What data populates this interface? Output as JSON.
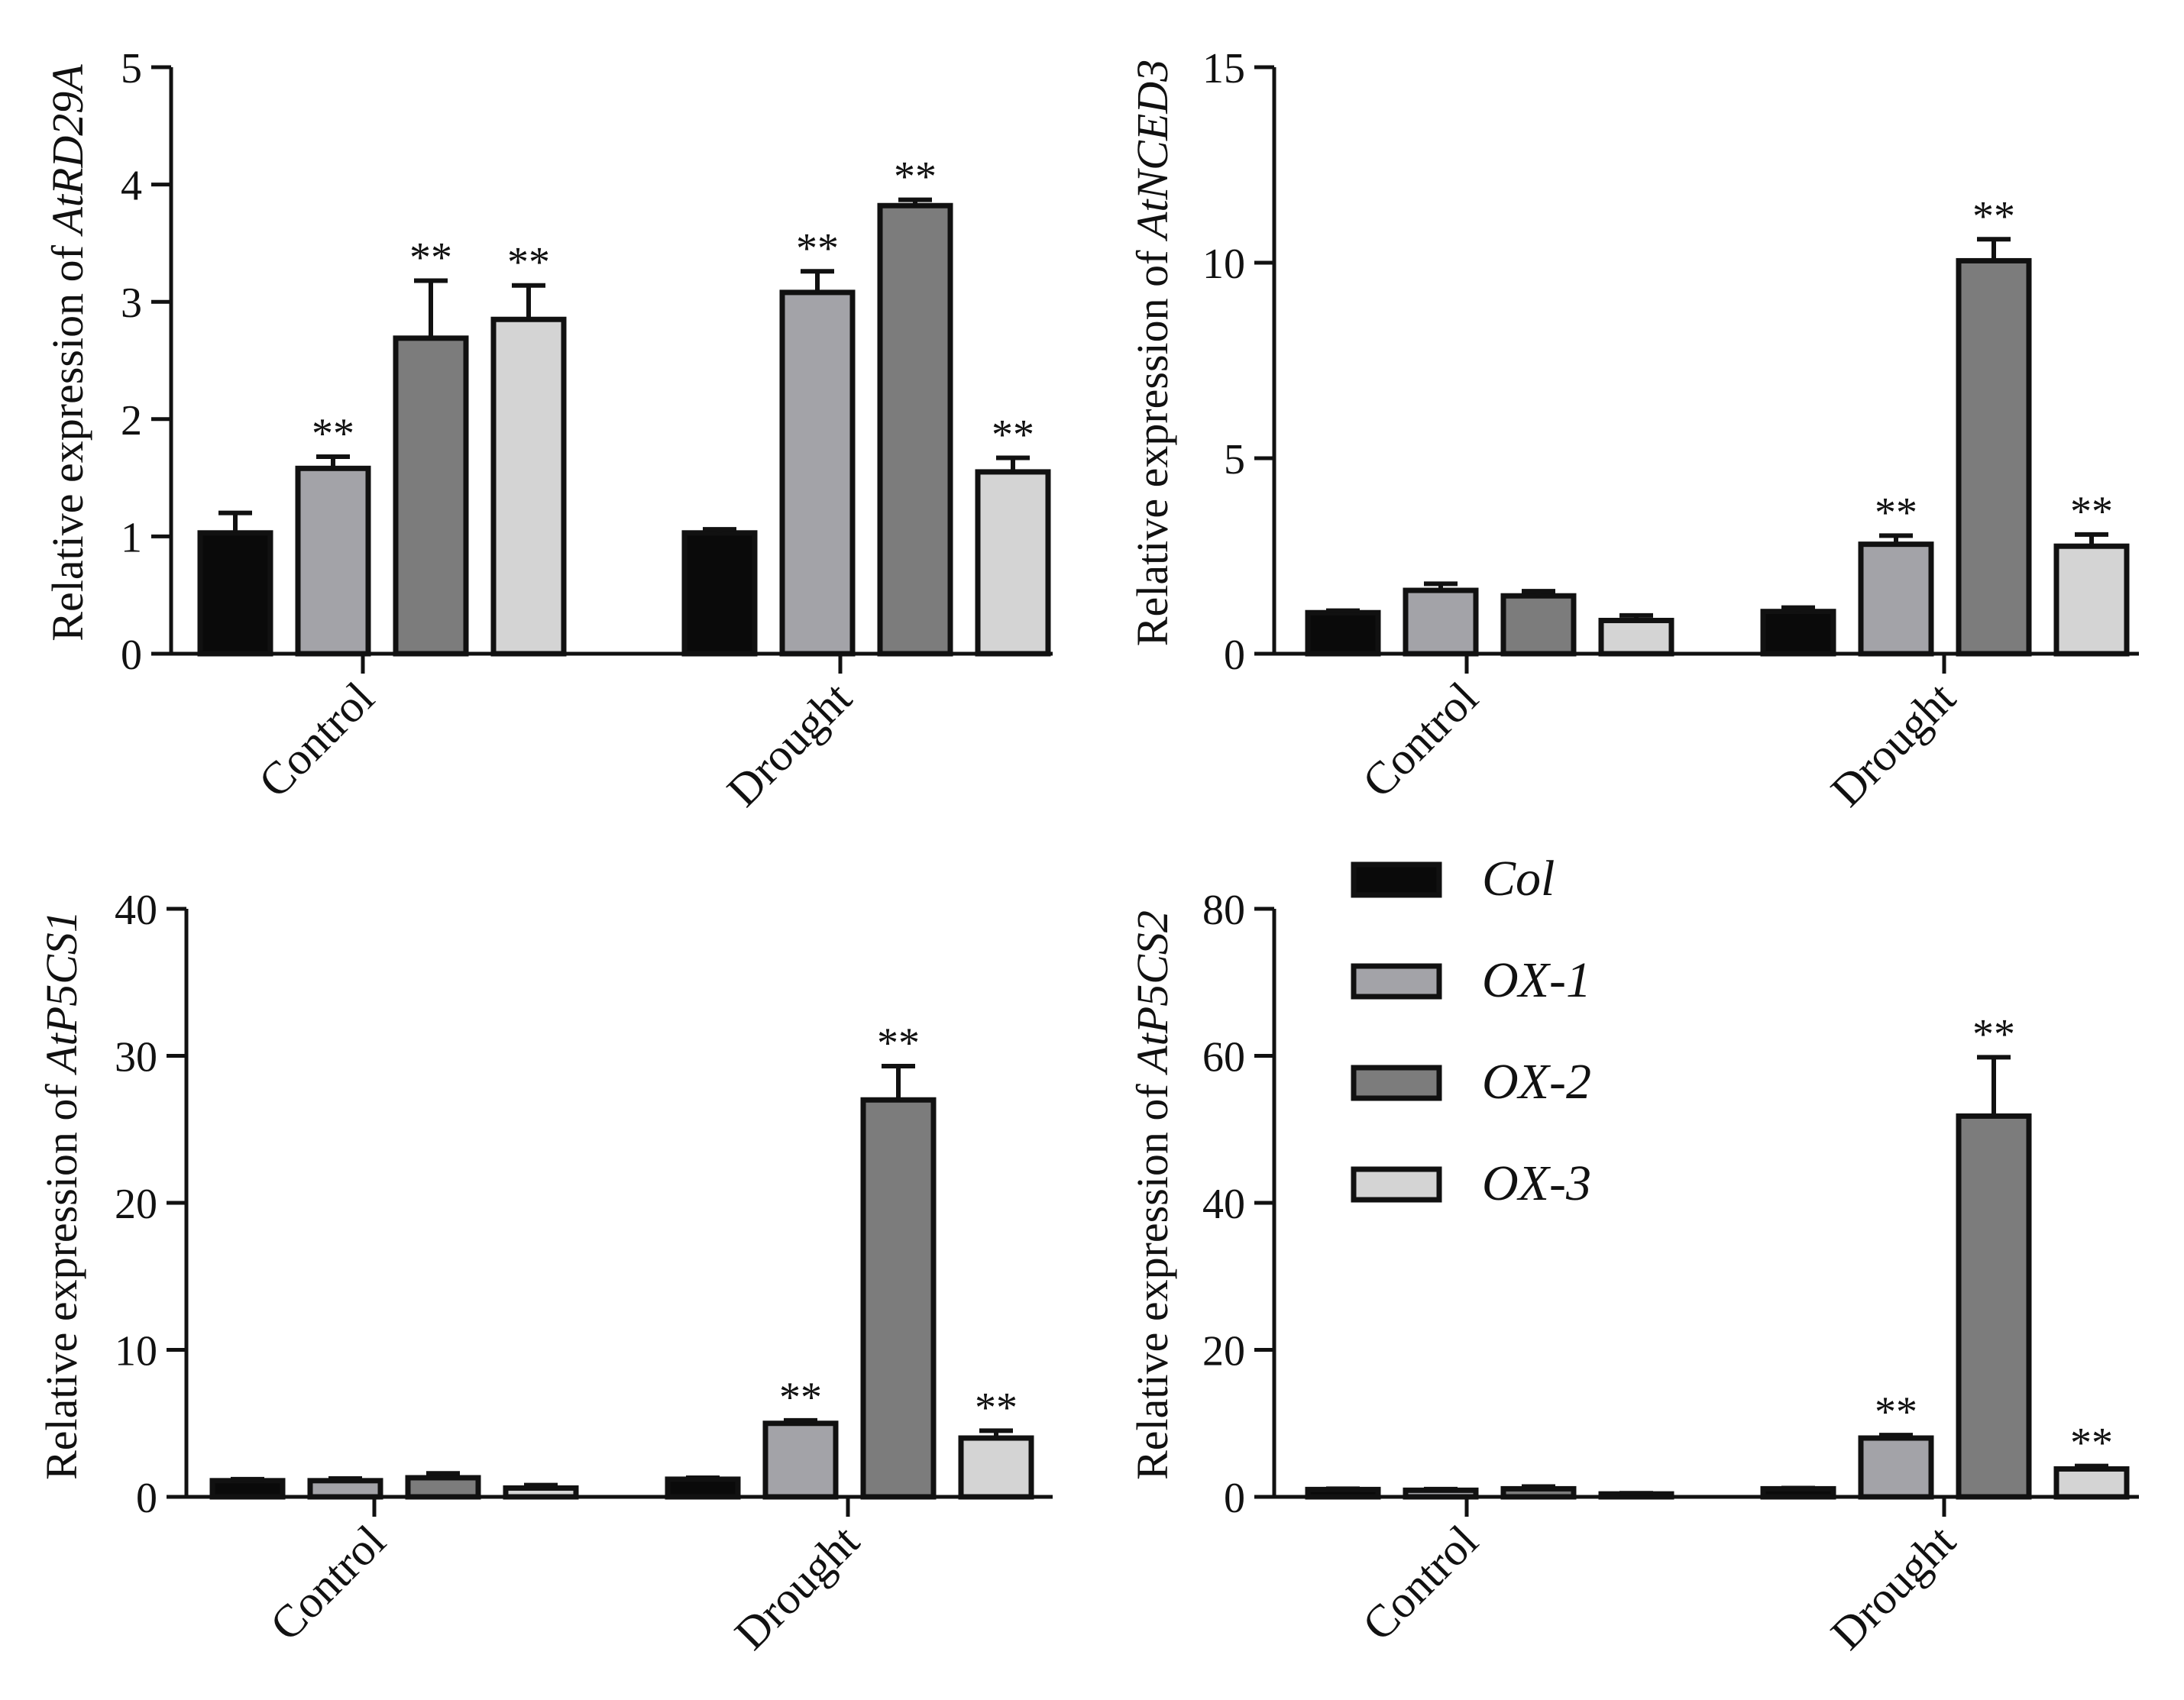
{
  "chart_data": [
    {
      "type": "bar",
      "ylabel_prefix": "Relative expression of ",
      "ylabel_gene": "AtRD29A",
      "categories": [
        "Control",
        "Drought"
      ],
      "ylim": [
        0,
        5
      ],
      "yticks": [
        "0",
        "1",
        "2",
        "3",
        "4",
        "5"
      ],
      "series": [
        {
          "name": "Col",
          "values": [
            1.03,
            1.03
          ],
          "errors": [
            0.17,
            0.03
          ],
          "marks": [
            "",
            ""
          ]
        },
        {
          "name": "OX-1",
          "values": [
            1.58,
            3.08
          ],
          "errors": [
            0.1,
            0.18
          ],
          "marks": [
            "**",
            "**"
          ]
        },
        {
          "name": "OX-2",
          "values": [
            2.69,
            3.82
          ],
          "errors": [
            0.49,
            0.05
          ],
          "marks": [
            "**",
            "**"
          ]
        },
        {
          "name": "OX-3",
          "values": [
            2.85,
            1.55
          ],
          "errors": [
            0.29,
            0.12
          ],
          "marks": [
            "**",
            "**"
          ]
        }
      ]
    },
    {
      "type": "bar",
      "ylabel_prefix": "Relative expression of ",
      "ylabel_gene": "AtNCED3",
      "categories": [
        "Control",
        "Drought"
      ],
      "ylim": [
        0,
        15
      ],
      "yticks": [
        "0",
        "5",
        "10",
        "15"
      ],
      "series": [
        {
          "name": "Col",
          "values": [
            1.05,
            1.08
          ],
          "errors": [
            0.05,
            0.1
          ],
          "marks": [
            "",
            ""
          ]
        },
        {
          "name": "OX-1",
          "values": [
            1.62,
            2.8
          ],
          "errors": [
            0.17,
            0.22
          ],
          "marks": [
            "",
            "**"
          ]
        },
        {
          "name": "OX-2",
          "values": [
            1.48,
            10.05
          ],
          "errors": [
            0.12,
            0.55
          ],
          "marks": [
            "",
            "**"
          ]
        },
        {
          "name": "OX-3",
          "values": [
            0.85,
            2.75
          ],
          "errors": [
            0.13,
            0.3
          ],
          "marks": [
            "",
            "**"
          ]
        }
      ]
    },
    {
      "type": "bar",
      "ylabel_prefix": "Relative expression of ",
      "ylabel_gene": "AtP5CS1",
      "categories": [
        "Control",
        "Drought"
      ],
      "ylim": [
        0,
        40
      ],
      "yticks": [
        "0",
        "10",
        "20",
        "30",
        "40"
      ],
      "series": [
        {
          "name": "Col",
          "values": [
            1.1,
            1.2
          ],
          "errors": [
            0.1,
            0.1
          ],
          "marks": [
            "",
            ""
          ]
        },
        {
          "name": "OX-1",
          "values": [
            1.1,
            5.0
          ],
          "errors": [
            0.15,
            0.2
          ],
          "marks": [
            "",
            "**"
          ]
        },
        {
          "name": "OX-2",
          "values": [
            1.3,
            27.0
          ],
          "errors": [
            0.3,
            2.3
          ],
          "marks": [
            "",
            "**"
          ]
        },
        {
          "name": "OX-3",
          "values": [
            0.6,
            4.0
          ],
          "errors": [
            0.2,
            0.5
          ],
          "marks": [
            "",
            "**"
          ]
        }
      ]
    },
    {
      "type": "bar",
      "ylabel_prefix": "Relative expression of ",
      "ylabel_gene": "AtP5CS2",
      "categories": [
        "Control",
        "Drought"
      ],
      "ylim": [
        0,
        80
      ],
      "yticks": [
        "0",
        "20",
        "40",
        "60",
        "80"
      ],
      "series": [
        {
          "name": "Col",
          "values": [
            1.0,
            1.1
          ],
          "errors": [
            0.1,
            0.1
          ],
          "marks": [
            "",
            ""
          ]
        },
        {
          "name": "OX-1",
          "values": [
            0.9,
            8.0
          ],
          "errors": [
            0.15,
            0.4
          ],
          "marks": [
            "",
            "**"
          ]
        },
        {
          "name": "OX-2",
          "values": [
            1.1,
            51.8
          ],
          "errors": [
            0.3,
            8.0
          ],
          "marks": [
            "",
            "**"
          ]
        },
        {
          "name": "OX-3",
          "values": [
            0.4,
            3.8
          ],
          "errors": [
            0.1,
            0.4
          ],
          "marks": [
            "",
            "**"
          ]
        }
      ]
    }
  ],
  "legend": {
    "items": [
      {
        "label": "Col"
      },
      {
        "label": "OX-1"
      },
      {
        "label": "OX-2"
      },
      {
        "label": "OX-3"
      }
    ]
  },
  "colors": {
    "series": [
      "#0a0a0a",
      "#a3a3a8",
      "#7c7c7c",
      "#d4d4d4"
    ]
  }
}
